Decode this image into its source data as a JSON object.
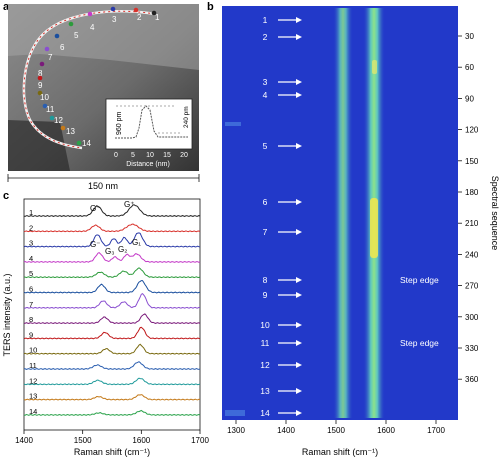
{
  "panels": {
    "a": "a",
    "b": "b",
    "c": "c"
  },
  "panel_a": {
    "scale_label": "150 nm",
    "points": [
      "1",
      "2",
      "3",
      "4",
      "5",
      "6",
      "7",
      "8",
      "9",
      "10",
      "11",
      "12",
      "13",
      "14"
    ],
    "inset": {
      "xlabel": "Distance (nm)",
      "x_ticks": [
        "0",
        "5",
        "10",
        "15",
        "20"
      ],
      "left_label": "960 pm",
      "right_label": "240 pm"
    }
  },
  "panel_b": {
    "x_ticks": [
      "1300",
      "1400",
      "1500",
      "1600",
      "1700"
    ],
    "xlabel": "Raman shift (cm⁻¹)",
    "y_ticks": [
      "30",
      "60",
      "90",
      "120",
      "150",
      "180",
      "210",
      "240",
      "270",
      "300",
      "330",
      "360"
    ],
    "ylabel": "Spectral sequence",
    "arrow_labels": [
      "1",
      "2",
      "3",
      "4",
      "5",
      "6",
      "7",
      "8",
      "9",
      "10",
      "11",
      "12",
      "13",
      "14"
    ],
    "annotations": [
      "Step edge",
      "Step edge"
    ]
  },
  "panel_c": {
    "ylabel": "TERS intensity (a.u.)",
    "xlabel": "Raman shift (cm⁻¹)",
    "x_ticks": [
      "1400",
      "1500",
      "1600",
      "1700"
    ],
    "peak_labels": {
      "g_minus_top": "G⁻",
      "g_plus_top": "G⁺",
      "g_minus": "G⁻",
      "g3": "G₃",
      "g2": "G₂",
      "g1": "G₁"
    },
    "spectra": [
      {
        "label": "1",
        "color": "#222222"
      },
      {
        "label": "2",
        "color": "#d8312b"
      },
      {
        "label": "3",
        "color": "#2a3aa8"
      },
      {
        "label": "4",
        "color": "#c43bc8"
      },
      {
        "label": "5",
        "color": "#2c9b3b"
      },
      {
        "label": "6",
        "color": "#1a4f9e"
      },
      {
        "label": "7",
        "color": "#8a4fd0"
      },
      {
        "label": "8",
        "color": "#7a1a7a"
      },
      {
        "label": "9",
        "color": "#c0181a"
      },
      {
        "label": "10",
        "color": "#7a6a10"
      },
      {
        "label": "11",
        "color": "#2a5eb0"
      },
      {
        "label": "12",
        "color": "#1f9a9a"
      },
      {
        "label": "13",
        "color": "#c47a1a"
      },
      {
        "label": "14",
        "color": "#2aa24a"
      }
    ]
  },
  "colors": {
    "map_bg": "#2239c9",
    "band": "#6fd1a3",
    "hot": "#f2e84a"
  }
}
